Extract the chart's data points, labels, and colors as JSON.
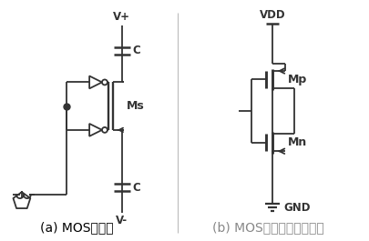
{
  "label_a": "(a) MOS开关管",
  "label_b": "(b) MOS开关管中的反相器",
  "text_vplus": "V+",
  "text_vminus": "V-",
  "text_vdd": "VDD",
  "text_gnd": "GND",
  "text_c": "C",
  "text_ms": "Ms",
  "text_mp": "Mp",
  "text_mn": "Mn",
  "bg_color": "#ffffff",
  "line_color": "#333333",
  "label_color_a": "#000000",
  "label_color_b": "#888888",
  "font_size_label": 10,
  "font_size_text": 8.5
}
